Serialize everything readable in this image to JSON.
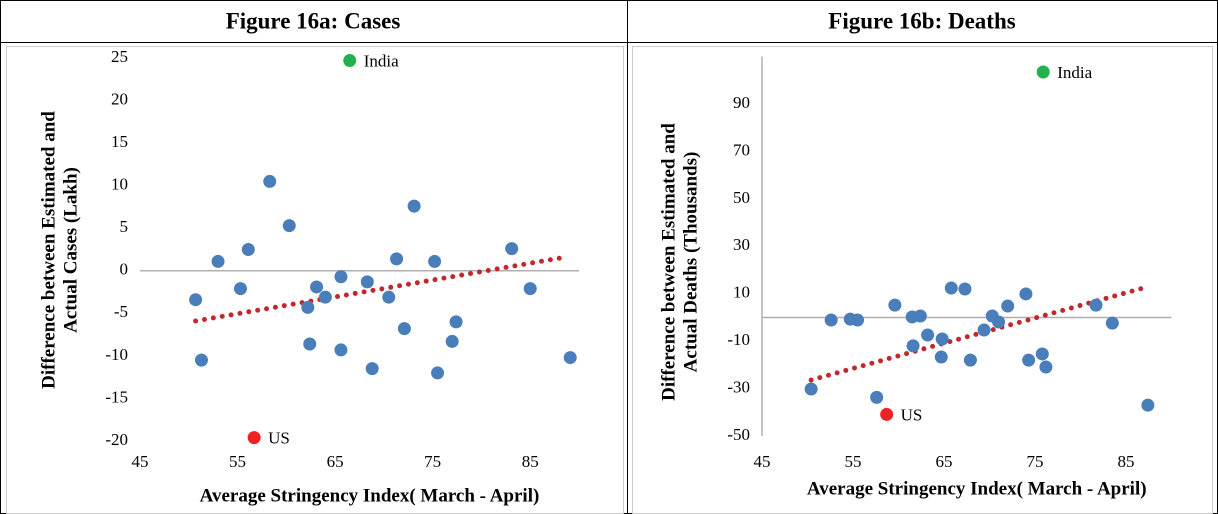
{
  "chart_data": [
    {
      "type": "scatter",
      "title": "Figure 16a: Cases",
      "x_label": "Average Stringency Index( March - April)",
      "y_label": [
        "Difference between Estimated and",
        "Actual Cases (Lakh)"
      ],
      "xlim": [
        45,
        90
      ],
      "xticks": [
        45,
        55,
        65,
        75,
        85
      ],
      "ylim": [
        -20,
        25
      ],
      "yticks": [
        -20,
        -15,
        -10,
        -5,
        0,
        5,
        10,
        15,
        20,
        25
      ],
      "y_axis_line": false,
      "series": [
        {
          "color": "#4a7ebb",
          "x": [
            50.7,
            51.3,
            53.0,
            55.3,
            56.1,
            58.3,
            60.3,
            62.2,
            62.4,
            63.1,
            64.0,
            65.6,
            65.6,
            68.3,
            68.8,
            70.5,
            71.3,
            72.1,
            73.1,
            75.2,
            75.5,
            77.0,
            77.4,
            83.1,
            85.0,
            89.1
          ],
          "values": [
            -3.4,
            -10.5,
            1.1,
            -2.1,
            2.5,
            10.5,
            5.3,
            -4.3,
            -8.6,
            -1.9,
            -3.1,
            -0.7,
            -9.3,
            -1.3,
            -11.5,
            -3.1,
            1.4,
            -6.8,
            7.6,
            1.1,
            -12.0,
            -8.3,
            -6.0,
            2.6,
            -2.1,
            -10.2
          ]
        },
        {
          "name": "India",
          "color": "#22b14c",
          "x": [
            66.5
          ],
          "values": [
            24.7
          ]
        },
        {
          "name": "US",
          "color": "#ee2222",
          "x": [
            56.7
          ],
          "values": [
            -19.6
          ]
        }
      ],
      "trendline": {
        "color": "#c0282d",
        "style": "dotted",
        "x": [
          50.7,
          88.6
        ],
        "values": [
          -5.9,
          1.6
        ]
      }
    },
    {
      "type": "scatter",
      "title": "Figure 16b: Deaths",
      "x_label": "Average Stringency Index( March - April)",
      "y_label": [
        "Difference between Estimated and",
        "Actual Deaths (Thousands)"
      ],
      "xlim": [
        45,
        90
      ],
      "xticks": [
        45,
        55,
        65,
        75,
        85
      ],
      "ylim": [
        -50,
        110
      ],
      "yticks": [
        -50,
        -30,
        -10,
        10,
        30,
        50,
        70,
        90
      ],
      "y_axis_line": true,
      "series": [
        {
          "color": "#4a7ebb",
          "x": [
            50.4,
            52.6,
            54.7,
            55.5,
            57.6,
            59.6,
            61.5,
            61.6,
            62.4,
            63.2,
            64.7,
            64.8,
            65.8,
            67.3,
            67.9,
            69.4,
            70.3,
            71.0,
            72.0,
            74.0,
            74.3,
            75.8,
            76.2,
            81.7,
            83.5,
            87.4
          ],
          "values": [
            -30.2,
            -1.1,
            -0.7,
            -1.1,
            -33.7,
            5.2,
            0.2,
            -12.0,
            0.6,
            -7.4,
            -16.7,
            -9.1,
            12.4,
            12.0,
            -18.0,
            -5.3,
            0.6,
            -1.9,
            4.8,
            9.9,
            -18.0,
            -15.4,
            -20.9,
            5.2,
            -2.4,
            -37.0
          ]
        },
        {
          "name": "India",
          "color": "#22b14c",
          "x": [
            75.9
          ],
          "values": [
            103.5
          ]
        },
        {
          "name": "US",
          "color": "#ee2222",
          "x": [
            58.7
          ],
          "values": [
            -40.9
          ]
        }
      ],
      "trendline": {
        "color": "#c0282d",
        "style": "dotted",
        "x": [
          50.4,
          86.9
        ],
        "values": [
          -26.4,
          12.4
        ]
      }
    }
  ]
}
